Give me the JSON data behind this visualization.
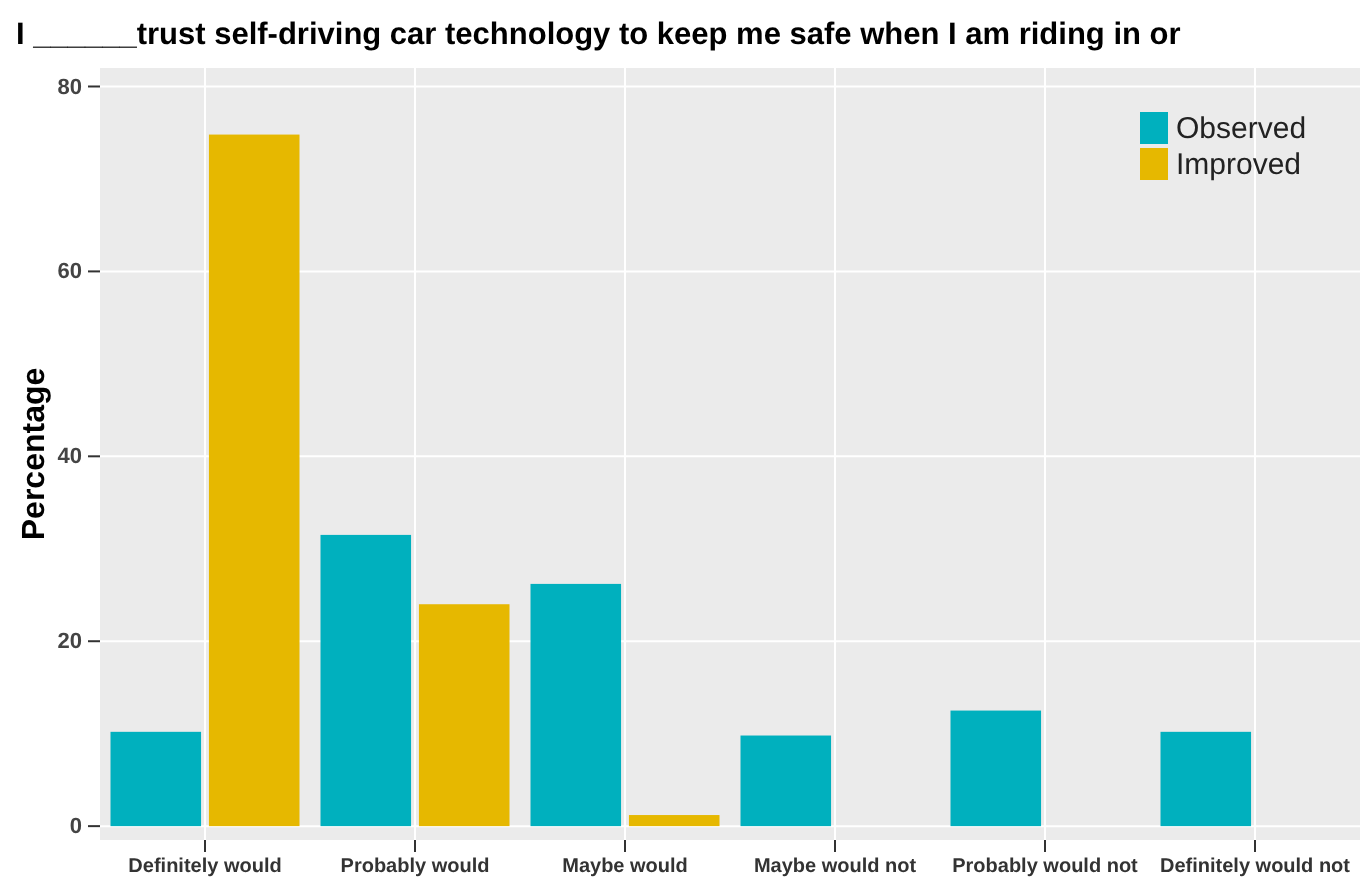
{
  "chart_data": {
    "type": "bar",
    "title": "I ______trust self-driving car technology to keep me safe when I am riding in or",
    "ylabel": "Percentage",
    "categories": [
      "Definitely would",
      "Probably would",
      "Maybe would",
      "Maybe would not",
      "Probably would not",
      "Definitely would not"
    ],
    "series": [
      {
        "name": "Observed",
        "color": "#00b0be",
        "values": [
          10.2,
          31.5,
          26.2,
          9.8,
          12.5,
          10.2
        ]
      },
      {
        "name": "Improved",
        "color": "#e6b800",
        "values": [
          74.8,
          24,
          1.2,
          0,
          0,
          0
        ]
      }
    ],
    "ylim": [
      -1.5,
      82
    ],
    "yticks": [
      0,
      20,
      40,
      60,
      80
    ],
    "grid": true,
    "legend": "top right"
  }
}
